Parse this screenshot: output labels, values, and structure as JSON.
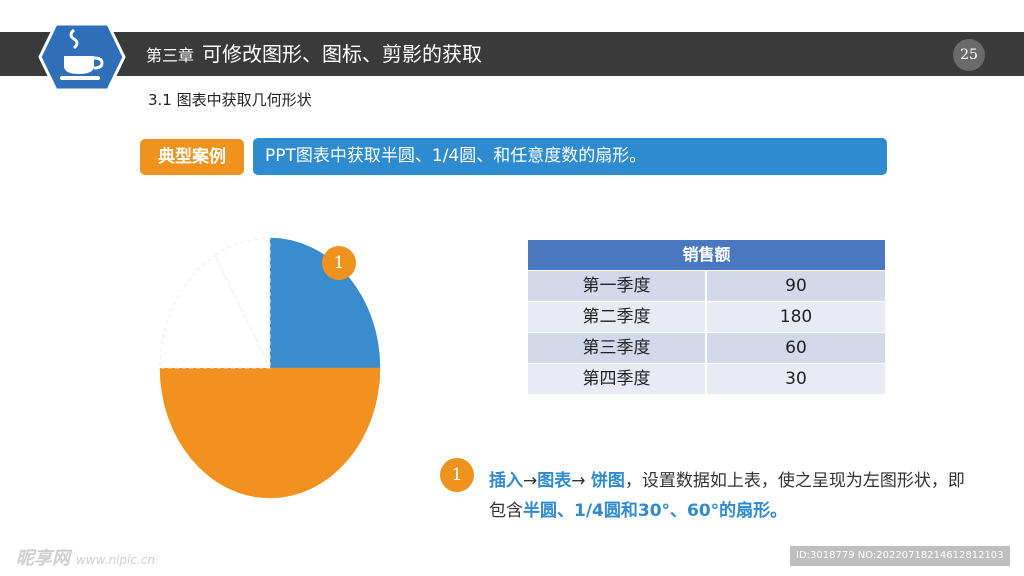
{
  "header": {
    "chapter_prefix": "第三章",
    "chapter_title": "可修改图形、图标、剪影的获取",
    "page_number": "25",
    "section_title": "3.1 图表中获取几何形状"
  },
  "case": {
    "tag": "典型案例",
    "description": "PPT图表中获取半圆、1/4圆、和任意度数的扇形。"
  },
  "pie": {
    "marker": "1",
    "colors": {
      "blue": "#3b8ccf",
      "orange": "#f29120"
    },
    "slices": [
      {
        "name": "第一季度",
        "value": 90,
        "color": "#3b8ccf"
      },
      {
        "name": "第二季度",
        "value": 180,
        "color": "#f29120"
      },
      {
        "name": "第三季度",
        "value": 60,
        "color": "#ffffff"
      },
      {
        "name": "第四季度",
        "value": 30,
        "color": "#ffffff"
      }
    ]
  },
  "table": {
    "header": "销售额",
    "rows": [
      {
        "label": "第一季度",
        "value": "90"
      },
      {
        "label": "第二季度",
        "value": "180"
      },
      {
        "label": "第三季度",
        "value": "60"
      },
      {
        "label": "第四季度",
        "value": "30"
      }
    ]
  },
  "instruction": {
    "marker": "1",
    "parts": {
      "insert": "插入",
      "arrow1": "→",
      "chart": "图表",
      "arrow2": "→ ",
      "pie": "饼图",
      "rest1": "，设置数据如上表，使之呈现为左图形状，即包含",
      "half": "半圆、1/4圆和30°、60°的扇形。"
    }
  },
  "watermark": {
    "left": "昵享网",
    "left_url": "www.nipic.cn",
    "right": "ID:3018779 NO:20220718214612812103"
  }
}
